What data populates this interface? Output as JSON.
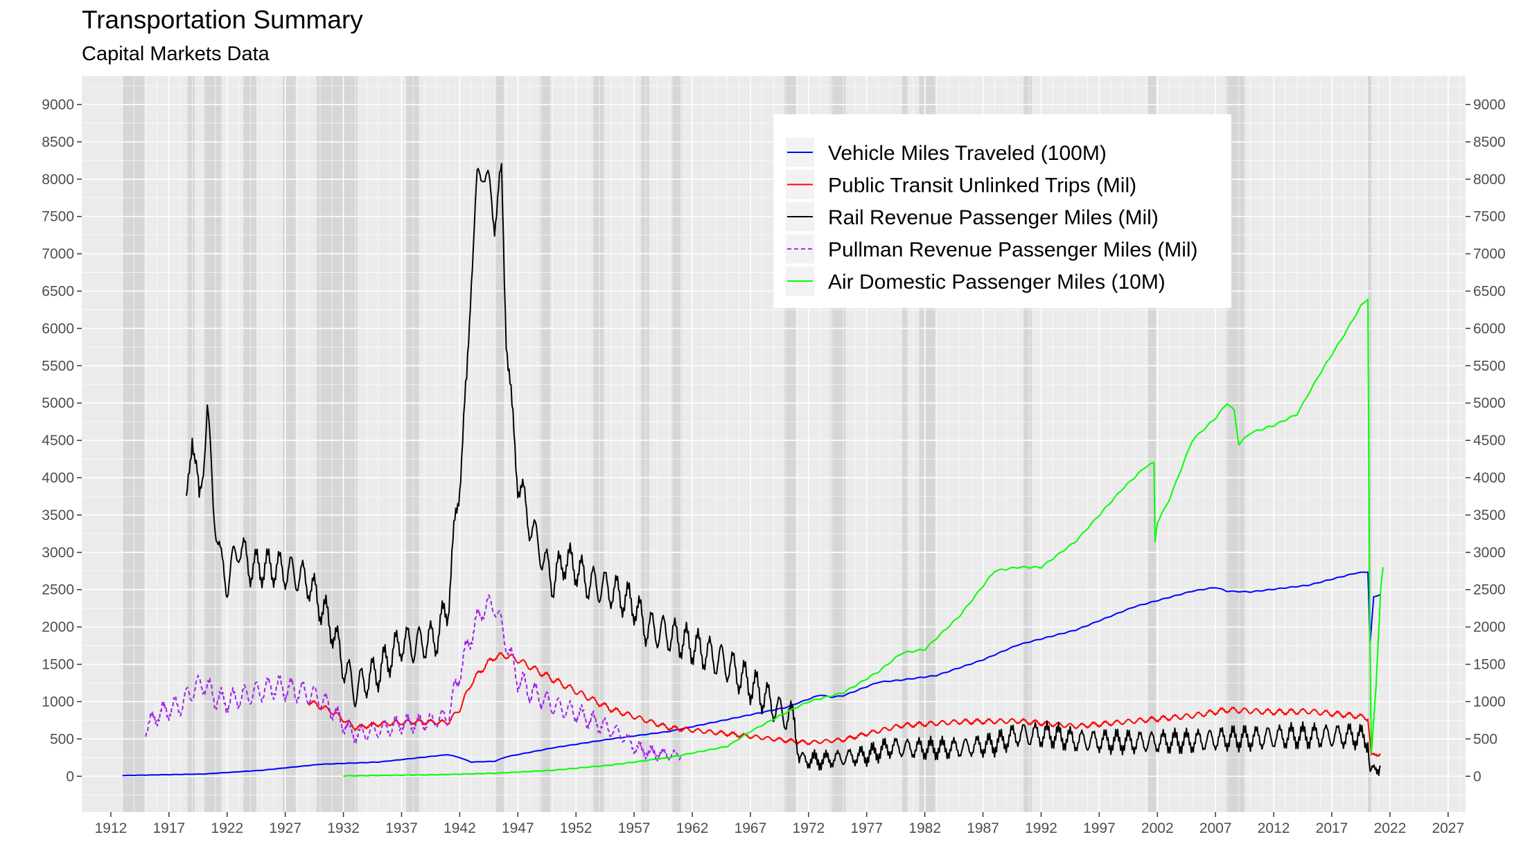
{
  "chart_data": {
    "type": "line",
    "title": "Transportation Summary",
    "subtitle": "Capital Markets Data",
    "xlabel": "",
    "ylabel": "",
    "xlim": [
      1909.5,
      2028.5
    ],
    "ylim": [
      -480,
      9380
    ],
    "x_ticks": [
      1912,
      1917,
      1922,
      1927,
      1932,
      1937,
      1942,
      1947,
      1952,
      1957,
      1962,
      1967,
      1972,
      1977,
      1982,
      1987,
      1992,
      1997,
      2002,
      2007,
      2012,
      2017,
      2022,
      2027
    ],
    "y_ticks": [
      0,
      500,
      1000,
      1500,
      2000,
      2500,
      3000,
      3500,
      4000,
      4500,
      5000,
      5500,
      6000,
      6500,
      7000,
      7500,
      8000,
      8500,
      9000
    ],
    "y_axis_both_sides": true,
    "grid": true,
    "legend_position": "top-right-inside",
    "recession_shading": [
      [
        1913.0,
        1914.9
      ],
      [
        1918.6,
        1919.2
      ],
      [
        1920.0,
        1921.5
      ],
      [
        1923.4,
        1924.5
      ],
      [
        1926.8,
        1927.9
      ],
      [
        1929.7,
        1933.2
      ],
      [
        1937.4,
        1938.5
      ],
      [
        1945.1,
        1945.8
      ],
      [
        1948.9,
        1949.8
      ],
      [
        1953.5,
        1954.4
      ],
      [
        1957.6,
        1958.3
      ],
      [
        1960.3,
        1961.1
      ],
      [
        1969.9,
        1970.9
      ],
      [
        1973.9,
        1975.2
      ],
      [
        1980.0,
        1980.5
      ],
      [
        1981.5,
        1982.9
      ],
      [
        1990.5,
        1991.2
      ],
      [
        2001.2,
        2001.9
      ],
      [
        2007.9,
        2009.5
      ],
      [
        2020.1,
        2020.4
      ]
    ],
    "series": [
      {
        "name": "Vehicle Miles Traveled (100M)",
        "color": "#0000ff",
        "dash": "solid",
        "seasonal_amplitude": 5,
        "points": [
          [
            1913,
            10
          ],
          [
            1920,
            30
          ],
          [
            1925,
            80
          ],
          [
            1930,
            160
          ],
          [
            1935,
            190
          ],
          [
            1941,
            290
          ],
          [
            1942,
            250
          ],
          [
            1943,
            190
          ],
          [
            1945,
            200
          ],
          [
            1946,
            260
          ],
          [
            1947,
            290
          ],
          [
            1950,
            380
          ],
          [
            1955,
            500
          ],
          [
            1960,
            600
          ],
          [
            1965,
            760
          ],
          [
            1970,
            920
          ],
          [
            1973,
            1090
          ],
          [
            1974,
            1060
          ],
          [
            1975,
            1080
          ],
          [
            1978,
            1260
          ],
          [
            1980,
            1290
          ],
          [
            1983,
            1350
          ],
          [
            1987,
            1560
          ],
          [
            1990,
            1760
          ],
          [
            1995,
            1960
          ],
          [
            2000,
            2270
          ],
          [
            2005,
            2480
          ],
          [
            2007,
            2530
          ],
          [
            2008,
            2480
          ],
          [
            2010,
            2470
          ],
          [
            2015,
            2560
          ],
          [
            2019,
            2720
          ],
          [
            2020.1,
            2740
          ],
          [
            2020.3,
            1800
          ],
          [
            2020.6,
            2400
          ],
          [
            2021.2,
            2440
          ]
        ]
      },
      {
        "name": "Public Transit Unlinked Trips (Mil)",
        "color": "#ff0000",
        "dash": "solid",
        "seasonal_amplitude": 40,
        "points": [
          [
            1929,
            1000
          ],
          [
            1931,
            870
          ],
          [
            1933,
            650
          ],
          [
            1935,
            700
          ],
          [
            1938,
            730
          ],
          [
            1941,
            720
          ],
          [
            1942,
            900
          ],
          [
            1943,
            1250
          ],
          [
            1944,
            1450
          ],
          [
            1945,
            1600
          ],
          [
            1946,
            1620
          ],
          [
            1947,
            1560
          ],
          [
            1950,
            1300
          ],
          [
            1955,
            900
          ],
          [
            1960,
            650
          ],
          [
            1965,
            570
          ],
          [
            1970,
            480
          ],
          [
            1972,
            450
          ],
          [
            1975,
            490
          ],
          [
            1977,
            570
          ],
          [
            1980,
            680
          ],
          [
            1985,
            730
          ],
          [
            1990,
            740
          ],
          [
            1995,
            670
          ],
          [
            2000,
            740
          ],
          [
            2005,
            810
          ],
          [
            2008,
            890
          ],
          [
            2012,
            860
          ],
          [
            2015,
            870
          ],
          [
            2019,
            810
          ],
          [
            2020.1,
            780
          ],
          [
            2020.4,
            280
          ],
          [
            2021.2,
            300
          ]
        ]
      },
      {
        "name": "Rail Revenue Passenger Miles (Mil)",
        "color": "#000000",
        "dash": "solid",
        "seasonal_amplitude": 220,
        "points": [
          [
            1918.5,
            3500
          ],
          [
            1919,
            4700
          ],
          [
            1919.6,
            3600
          ],
          [
            1920.3,
            4900
          ],
          [
            1920.8,
            3700
          ],
          [
            1921.5,
            2800
          ],
          [
            1922,
            2600
          ],
          [
            1923,
            3100
          ],
          [
            1924,
            2800
          ],
          [
            1926,
            2800
          ],
          [
            1928,
            2700
          ],
          [
            1929,
            2600
          ],
          [
            1930,
            2300
          ],
          [
            1931,
            2000
          ],
          [
            1932,
            1500
          ],
          [
            1933,
            1150
          ],
          [
            1934,
            1300
          ],
          [
            1935,
            1400
          ],
          [
            1936,
            1600
          ],
          [
            1937,
            1800
          ],
          [
            1938,
            1750
          ],
          [
            1940,
            1850
          ],
          [
            1941,
            2300
          ],
          [
            1942,
            4000
          ],
          [
            1942.6,
            5200
          ],
          [
            1943,
            6800
          ],
          [
            1943.5,
            7900
          ],
          [
            1944,
            8200
          ],
          [
            1944.6,
            7800
          ],
          [
            1945,
            7500
          ],
          [
            1945.6,
            8000
          ],
          [
            1946,
            6000
          ],
          [
            1946.5,
            4800
          ],
          [
            1947,
            4000
          ],
          [
            1948,
            3400
          ],
          [
            1949,
            3000
          ],
          [
            1950,
            2600
          ],
          [
            1951,
            2900
          ],
          [
            1952,
            2800
          ],
          [
            1953,
            2600
          ],
          [
            1955,
            2500
          ],
          [
            1957,
            2300
          ],
          [
            1958,
            2000
          ],
          [
            1960,
            1900
          ],
          [
            1962,
            1750
          ],
          [
            1965,
            1500
          ],
          [
            1968,
            1100
          ],
          [
            1970,
            800
          ],
          [
            1970.8,
            780
          ],
          [
            1971.2,
            230
          ],
          [
            1973,
            210
          ],
          [
            1975,
            250
          ],
          [
            1977,
            280
          ],
          [
            1979,
            390
          ],
          [
            1980,
            380
          ],
          [
            1982,
            370
          ],
          [
            1985,
            380
          ],
          [
            1988,
            430
          ],
          [
            1990,
            560
          ],
          [
            1993,
            550
          ],
          [
            1995,
            480
          ],
          [
            2000,
            460
          ],
          [
            2005,
            470
          ],
          [
            2008,
            510
          ],
          [
            2010,
            510
          ],
          [
            2014,
            540
          ],
          [
            2019,
            540
          ],
          [
            2020.1,
            500
          ],
          [
            2020.3,
            40
          ],
          [
            2020.8,
            110
          ],
          [
            2021.2,
            140
          ]
        ]
      },
      {
        "name": "Pullman Revenue Passenger Miles (Mil)",
        "color": "#a020f0",
        "dash": "dashed",
        "seasonal_amplitude": 140,
        "points": [
          [
            1915,
            650
          ],
          [
            1916,
            820
          ],
          [
            1917,
            900
          ],
          [
            1918,
            950
          ],
          [
            1919,
            1150
          ],
          [
            1920,
            1250
          ],
          [
            1921,
            1050
          ],
          [
            1922,
            1000
          ],
          [
            1924,
            1100
          ],
          [
            1926,
            1200
          ],
          [
            1928,
            1150
          ],
          [
            1930,
            1050
          ],
          [
            1931,
            900
          ],
          [
            1932,
            700
          ],
          [
            1933,
            550
          ],
          [
            1935,
            620
          ],
          [
            1937,
            700
          ],
          [
            1939,
            720
          ],
          [
            1941,
            800
          ],
          [
            1942,
            1400
          ],
          [
            1943,
            1900
          ],
          [
            1944,
            2250
          ],
          [
            1945,
            2300
          ],
          [
            1946,
            1800
          ],
          [
            1947,
            1300
          ],
          [
            1948,
            1150
          ],
          [
            1950,
            950
          ],
          [
            1952,
            850
          ],
          [
            1954,
            700
          ],
          [
            1956,
            550
          ],
          [
            1957,
            400
          ],
          [
            1958,
            330
          ],
          [
            1959,
            300
          ],
          [
            1960,
            300
          ],
          [
            1961,
            270
          ]
        ]
      },
      {
        "name": "Air Domestic Passenger Miles (10M)",
        "color": "#00ff00",
        "dash": "solid",
        "seasonal_amplitude": 10,
        "points": [
          [
            1932,
            5
          ],
          [
            1940,
            20
          ],
          [
            1945,
            40
          ],
          [
            1950,
            80
          ],
          [
            1955,
            150
          ],
          [
            1960,
            250
          ],
          [
            1965,
            400
          ],
          [
            1967,
            600
          ],
          [
            1970,
            850
          ],
          [
            1972,
            1000
          ],
          [
            1975,
            1120
          ],
          [
            1978,
            1400
          ],
          [
            1980,
            1650
          ],
          [
            1982,
            1700
          ],
          [
            1985,
            2150
          ],
          [
            1987,
            2550
          ],
          [
            1988,
            2750
          ],
          [
            1990,
            2800
          ],
          [
            1992,
            2800
          ],
          [
            1995,
            3150
          ],
          [
            1997,
            3500
          ],
          [
            1999,
            3850
          ],
          [
            2001,
            4150
          ],
          [
            2001.7,
            4200
          ],
          [
            2001.8,
            3150
          ],
          [
            2002,
            3400
          ],
          [
            2003,
            3700
          ],
          [
            2005,
            4500
          ],
          [
            2007,
            4800
          ],
          [
            2008,
            5000
          ],
          [
            2008.6,
            4900
          ],
          [
            2009,
            4450
          ],
          [
            2010,
            4600
          ],
          [
            2012,
            4700
          ],
          [
            2014,
            4850
          ],
          [
            2016,
            5400
          ],
          [
            2018,
            5900
          ],
          [
            2019.5,
            6300
          ],
          [
            2020.1,
            6400
          ],
          [
            2020.25,
            2300
          ],
          [
            2020.4,
            300
          ],
          [
            2020.8,
            1200
          ],
          [
            2021.2,
            2500
          ],
          [
            2021.4,
            2800
          ]
        ]
      }
    ]
  }
}
